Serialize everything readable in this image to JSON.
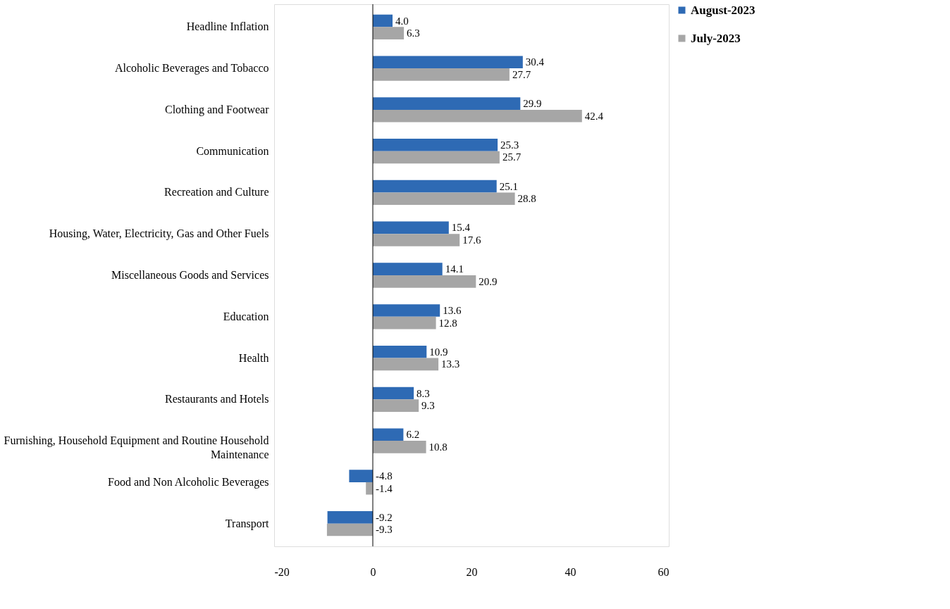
{
  "chart_data": {
    "type": "bar",
    "orientation": "horizontal",
    "categories": [
      "Headline Inflation",
      "Alcoholic Beverages and Tobacco",
      "Clothing and Footwear",
      "Communication",
      "Recreation and Culture",
      "Housing, Water, Electricity, Gas and Other Fuels",
      "Miscellaneous Goods and Services",
      "Education",
      "Health",
      "Restaurants and Hotels",
      "Furnishing, Household Equipment and Routine Household Maintenance",
      "Food and Non Alcoholic Beverages",
      "Transport"
    ],
    "series": [
      {
        "name": "August-2023",
        "color": "#2e6ab4",
        "values": [
          4.0,
          30.4,
          29.9,
          25.3,
          25.1,
          15.4,
          14.1,
          13.6,
          10.9,
          8.3,
          6.2,
          -4.8,
          -9.2
        ],
        "value_labels": [
          "4.0",
          "30.4",
          "29.9",
          "25.3",
          "25.1",
          "15.4",
          "14.1",
          "13.6",
          "10.9",
          "8.3",
          "6.2",
          "-4.8",
          "-9.2"
        ]
      },
      {
        "name": "July-2023",
        "color": "#a6a6a6",
        "values": [
          6.3,
          27.7,
          42.4,
          25.7,
          28.8,
          17.6,
          20.9,
          12.8,
          13.3,
          9.3,
          10.8,
          -1.4,
          -9.3
        ],
        "value_labels": [
          "6.3",
          "27.7",
          "42.4",
          "25.7",
          "28.8",
          "17.6",
          "20.9",
          "12.8",
          "13.3",
          "9.3",
          "10.8",
          "-1.4",
          "-9.3"
        ]
      }
    ],
    "xlim": [
      -20,
      60
    ],
    "xticks": [
      -20,
      0,
      20,
      40,
      60
    ],
    "legend": "right"
  }
}
